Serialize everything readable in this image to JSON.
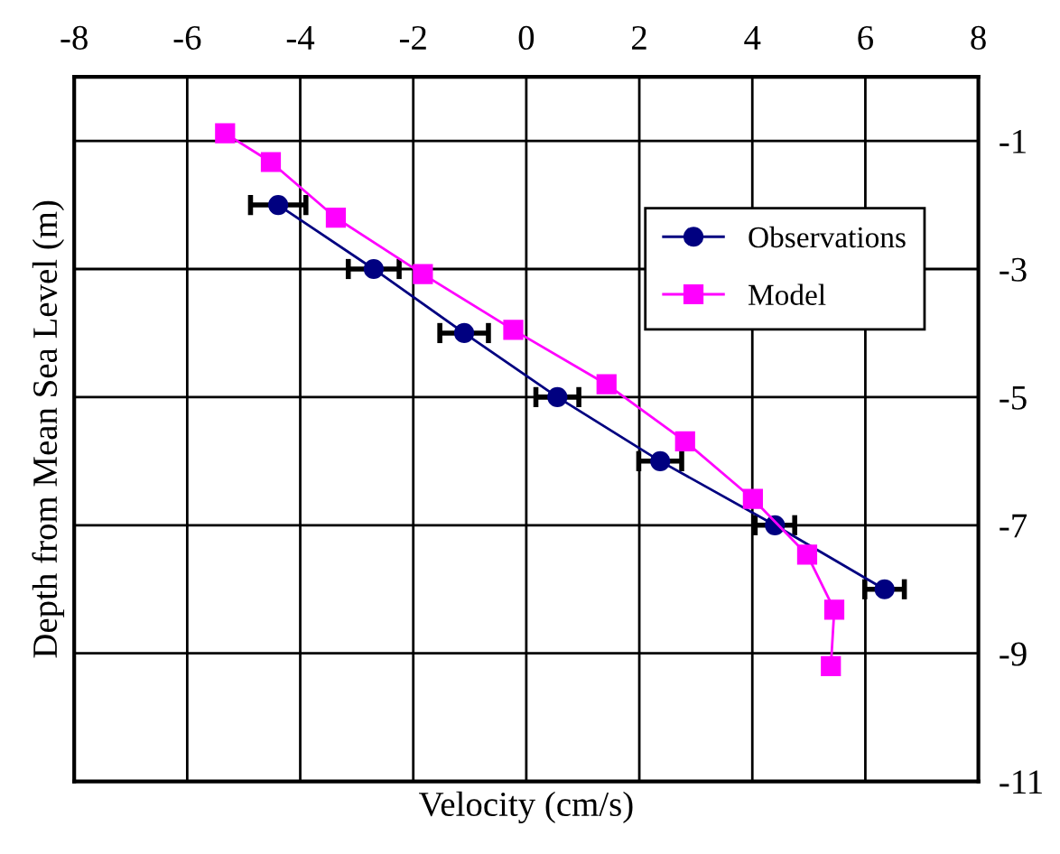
{
  "chart_data": {
    "type": "line",
    "xlabel": "Velocity (cm/s)",
    "ylabel": "Depth from Mean Sea Level (m)",
    "xlim": [
      -8,
      8
    ],
    "xticks": [
      -8,
      -6,
      -4,
      -2,
      0,
      2,
      4,
      6,
      8
    ],
    "ylim": [
      -11,
      0
    ],
    "yticks": [
      -1,
      -3,
      -5,
      -7,
      -9,
      -11
    ],
    "grid": true,
    "legend": "top right",
    "series": [
      {
        "name": "Observations",
        "color": "#000080",
        "marker": "circle",
        "x": [
          -4.39,
          -2.7,
          -1.1,
          0.55,
          2.37,
          4.4,
          6.34
        ],
        "values": [
          -2,
          -3,
          -4,
          -5,
          -6,
          -7,
          -8
        ],
        "xerrors": [
          0.49,
          0.45,
          0.43,
          0.38,
          0.38,
          0.35,
          0.35
        ]
      },
      {
        "name": "Model",
        "color": "#ff00ff",
        "marker": "square",
        "x": [
          -5.33,
          -4.52,
          -3.37,
          -1.83,
          -0.23,
          1.42,
          2.81,
          4.01,
          4.97,
          5.45,
          5.39
        ],
        "values": [
          -0.88,
          -1.33,
          -2.2,
          -3.08,
          -3.95,
          -4.8,
          -5.69,
          -6.59,
          -7.46,
          -8.32,
          -9.2
        ]
      }
    ]
  }
}
